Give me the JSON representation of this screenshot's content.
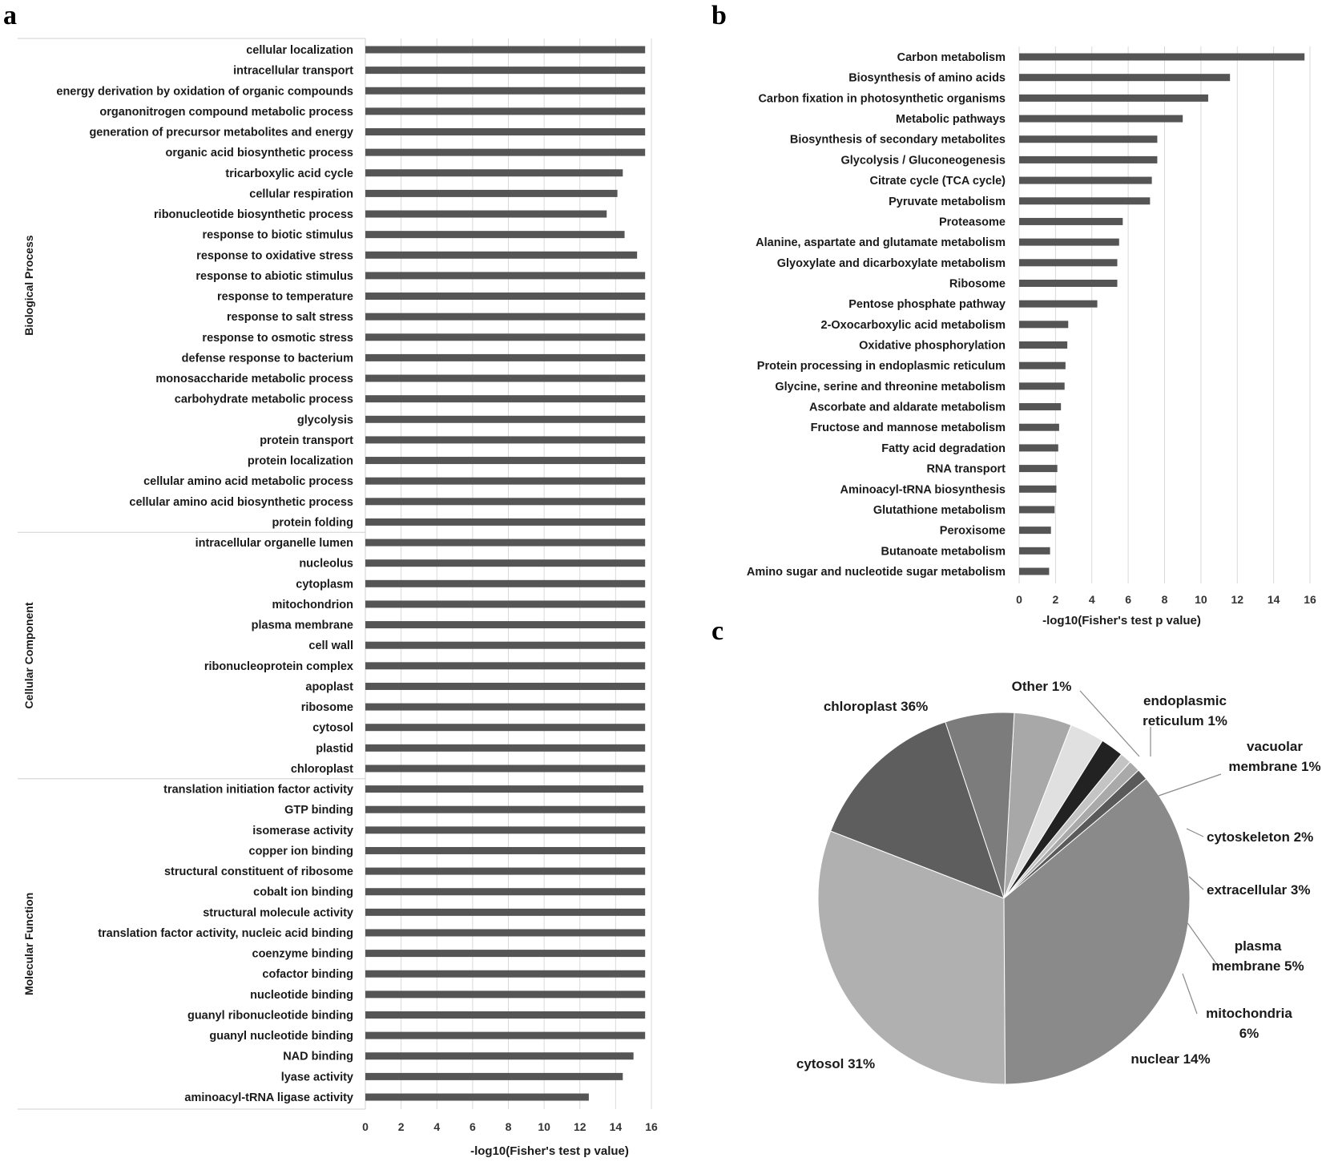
{
  "colors": {
    "bar": "#555555",
    "grid": "#d9d9d9",
    "frame": "#cfcfcf",
    "leader": "#8a8a8a"
  },
  "panel_labels": {
    "a": "a",
    "b": "b",
    "c": "c"
  },
  "chart_data": [
    {
      "id": "a",
      "type": "bar",
      "orientation": "horizontal",
      "xlabel": "-log10(Fisher's test p value)",
      "xlim": [
        0,
        16
      ],
      "xticks": [
        "0",
        "2",
        "4",
        "6",
        "8",
        "10",
        "12",
        "14",
        "16"
      ],
      "grid": true,
      "groups": [
        {
          "name": "Biological Process",
          "start": 0,
          "end": 23
        },
        {
          "name": "Cellular Component",
          "start": 24,
          "end": 35
        },
        {
          "name": "Molecular Function",
          "start": 36,
          "end": 51
        }
      ],
      "categories": [
        "cellular localization",
        "intracellular transport",
        "energy derivation by oxidation of organic compounds",
        "organonitrogen compound metabolic process",
        "generation of precursor metabolites and energy",
        "organic acid biosynthetic process",
        "tricarboxylic acid cycle",
        "cellular respiration",
        "ribonucleotide biosynthetic process",
        "response to biotic stimulus",
        "response to oxidative stress",
        "response to abiotic stimulus",
        "response to temperature",
        "response to salt stress",
        "response to osmotic stress",
        "defense response to bacterium",
        "monosaccharide metabolic process",
        "carbohydrate metabolic process",
        "glycolysis",
        "protein transport",
        "protein localization",
        "cellular amino acid metabolic process",
        "cellular amino acid biosynthetic process",
        "protein folding",
        "intracellular organelle lumen",
        "nucleolus",
        "cytoplasm",
        "mitochondrion",
        "plasma membrane",
        "cell wall",
        "ribonucleoprotein complex",
        "apoplast",
        "ribosome",
        "cytosol",
        "plastid",
        "chloroplast",
        "translation initiation factor activity",
        "GTP binding",
        "isomerase activity",
        "copper ion binding",
        "structural constituent of ribosome",
        "cobalt ion binding",
        "structural molecule activity",
        "translation factor activity, nucleic acid binding",
        "coenzyme binding",
        "cofactor binding",
        "nucleotide binding",
        "guanyl ribonucleotide binding",
        "guanyl nucleotide binding",
        "NAD binding",
        "lyase activity",
        "aminoacyl-tRNA ligase activity"
      ],
      "values": [
        15.65,
        15.65,
        15.65,
        15.65,
        15.65,
        15.65,
        14.4,
        14.1,
        13.5,
        14.5,
        15.2,
        15.65,
        15.65,
        15.65,
        15.65,
        15.65,
        15.65,
        15.65,
        15.65,
        15.65,
        15.65,
        15.65,
        15.65,
        15.65,
        15.65,
        15.65,
        15.65,
        15.65,
        15.65,
        15.65,
        15.65,
        15.65,
        15.65,
        15.65,
        15.65,
        15.65,
        15.55,
        15.65,
        15.65,
        15.65,
        15.65,
        15.65,
        15.65,
        15.65,
        15.65,
        15.65,
        15.65,
        15.65,
        15.65,
        15.0,
        14.4,
        12.5
      ]
    },
    {
      "id": "b",
      "type": "bar",
      "orientation": "horizontal",
      "xlabel": "-log10(Fisher's test p value)",
      "xlim": [
        0,
        16
      ],
      "xticks": [
        "0",
        "2",
        "4",
        "6",
        "8",
        "10",
        "12",
        "14",
        "16"
      ],
      "grid": true,
      "categories": [
        "Carbon metabolism",
        "Biosynthesis of amino acids",
        "Carbon fixation in photosynthetic organisms",
        "Metabolic pathways",
        "Biosynthesis of secondary metabolites",
        "Glycolysis / Gluconeogenesis",
        "Citrate cycle (TCA cycle)",
        "Pyruvate metabolism",
        "Proteasome",
        "Alanine, aspartate and glutamate metabolism",
        "Glyoxylate and dicarboxylate metabolism",
        "Ribosome",
        "Pentose phosphate pathway",
        "2-Oxocarboxylic acid metabolism",
        "Oxidative phosphorylation",
        "Protein processing in endoplasmic reticulum",
        "Glycine, serine and threonine metabolism",
        "Ascorbate and aldarate metabolism",
        "Fructose and mannose metabolism",
        "Fatty acid degradation",
        "RNA transport",
        "Aminoacyl-tRNA biosynthesis",
        "Glutathione metabolism",
        "Peroxisome",
        "Butanoate metabolism",
        "Amino sugar and nucleotide sugar metabolism"
      ],
      "values": [
        15.7,
        11.6,
        10.4,
        9.0,
        7.6,
        7.6,
        7.3,
        7.2,
        5.7,
        5.5,
        5.4,
        5.4,
        4.3,
        2.7,
        2.65,
        2.55,
        2.5,
        2.3,
        2.2,
        2.15,
        2.1,
        2.05,
        1.95,
        1.75,
        1.7,
        1.65
      ]
    },
    {
      "id": "c",
      "type": "pie",
      "categories": [
        "Other",
        "endoplasmic reticulum",
        "vacuolar membrane",
        "cytoskeleton",
        "extracellular",
        "plasma membrane",
        "mitochondria",
        "nuclear",
        "cytosol",
        "chloroplast"
      ],
      "values": [
        1,
        1,
        1,
        2,
        3,
        5,
        6,
        14,
        31,
        36
      ],
      "labels": [
        "Other 1%",
        "endoplasmic reticulum 1%",
        "vacuolar membrane 1%",
        "cytoskeleton 2%",
        "extracellular 3%",
        "plasma membrane 5%",
        "mitochondria 6%",
        "nuclear 14%",
        "cytosol 31%",
        "chloroplast 36%"
      ],
      "colors": [
        "#5a5a5a",
        "#a9a9a9",
        "#c4c4c4",
        "#222222",
        "#e0e0e0",
        "#a8a8a8",
        "#7c7c7c",
        "#5e5e5e",
        "#b0b0b0",
        "#8a8a8a"
      ]
    }
  ]
}
